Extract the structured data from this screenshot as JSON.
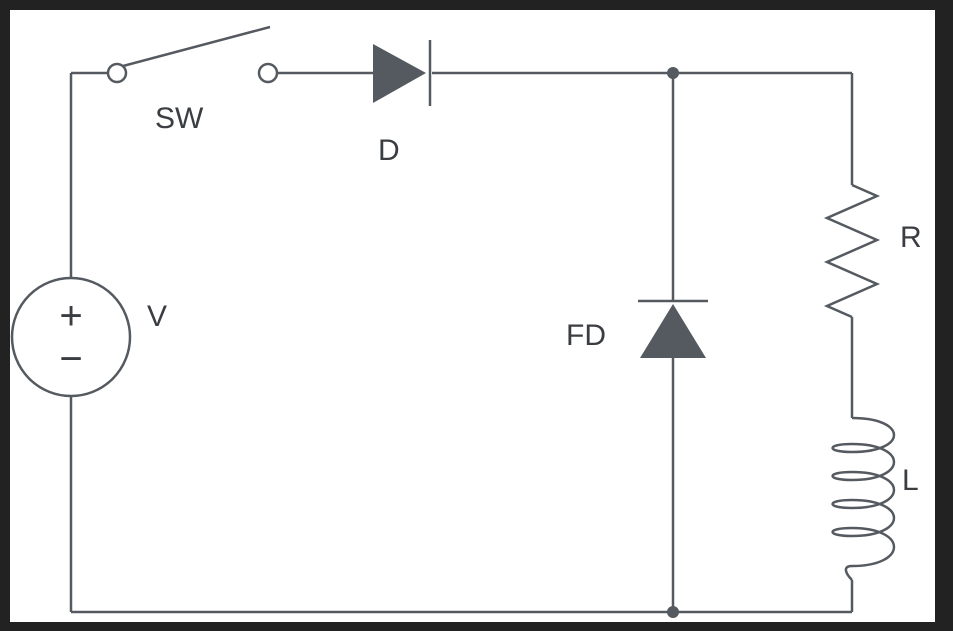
{
  "labels": {
    "switch": "SW",
    "diode": "D",
    "source": "V",
    "freewheel_diode": "FD",
    "resistor": "R",
    "inductor": "L"
  },
  "source_symbols": {
    "plus": "+",
    "minus": "−"
  },
  "colors": {
    "background": "#ffffff",
    "frame": "#222222",
    "line": "#555a60",
    "text": "#3a3d42"
  }
}
